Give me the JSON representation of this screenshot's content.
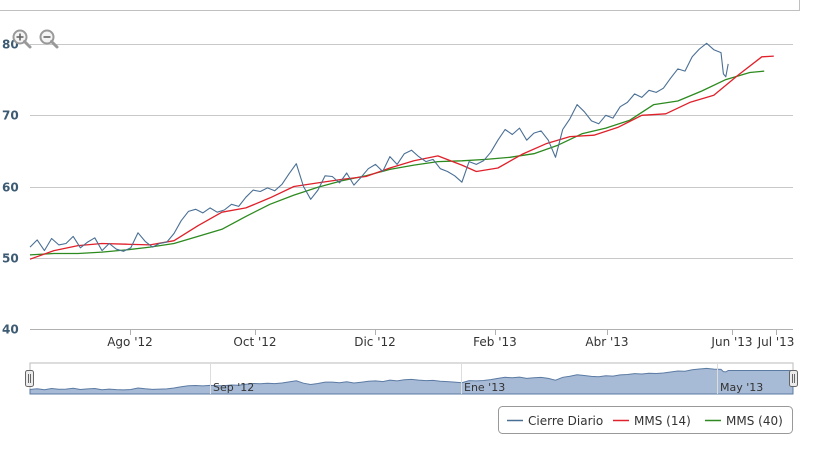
{
  "chart_data": {
    "type": "line",
    "y_ticks": [
      40,
      50,
      60,
      70,
      80
    ],
    "ylim": [
      40,
      80
    ],
    "x_ticks": [
      "Ago '12",
      "Oct '12",
      "Dic '12",
      "Feb '13",
      "Abr '13",
      "Jun '13",
      "Jul '13"
    ],
    "navigator_ticks": [
      "Sep '12",
      "Ene '13",
      "May '13"
    ],
    "grid": true,
    "legend_position": "bottom-right",
    "series": [
      {
        "name": "Cierre Diario",
        "color": "#4a6f95",
        "values": [
          [
            0,
            51.5
          ],
          [
            3,
            52.5
          ],
          [
            6,
            51
          ],
          [
            9,
            52.7
          ],
          [
            12,
            51.8
          ],
          [
            15,
            52
          ],
          [
            18,
            53
          ],
          [
            21,
            51.4
          ],
          [
            24,
            52.2
          ],
          [
            27,
            52.8
          ],
          [
            30,
            51
          ],
          [
            33,
            52
          ],
          [
            36,
            51.2
          ],
          [
            39,
            50.9
          ],
          [
            42,
            51.4
          ],
          [
            45,
            53.5
          ],
          [
            48,
            52.3
          ],
          [
            51,
            51.5
          ],
          [
            54,
            52
          ],
          [
            57,
            52.2
          ],
          [
            60,
            53.4
          ],
          [
            63,
            55.2
          ],
          [
            66,
            56.5
          ],
          [
            69,
            56.8
          ],
          [
            72,
            56.3
          ],
          [
            75,
            57
          ],
          [
            78,
            56.4
          ],
          [
            81,
            56.7
          ],
          [
            84,
            57.5
          ],
          [
            87,
            57.2
          ],
          [
            90,
            58.5
          ],
          [
            93,
            59.5
          ],
          [
            96,
            59.3
          ],
          [
            99,
            59.8
          ],
          [
            102,
            59.4
          ],
          [
            105,
            60.3
          ],
          [
            108,
            61.8
          ],
          [
            111,
            63.2
          ],
          [
            114,
            60
          ],
          [
            117,
            58.2
          ],
          [
            120,
            59.5
          ],
          [
            123,
            61.5
          ],
          [
            126,
            61.4
          ],
          [
            129,
            60.5
          ],
          [
            132,
            61.9
          ],
          [
            135,
            60.2
          ],
          [
            138,
            61.3
          ],
          [
            141,
            62.5
          ],
          [
            144,
            63.1
          ],
          [
            147,
            62.1
          ],
          [
            150,
            64.2
          ],
          [
            153,
            63.1
          ],
          [
            156,
            64.6
          ],
          [
            159,
            65.1
          ],
          [
            162,
            64.2
          ],
          [
            165,
            63.5
          ],
          [
            168,
            63.8
          ],
          [
            171,
            62.5
          ],
          [
            174,
            62.1
          ],
          [
            177,
            61.5
          ],
          [
            180,
            60.6
          ],
          [
            183,
            63.5
          ],
          [
            186,
            63.1
          ],
          [
            189,
            63.6
          ],
          [
            192,
            64.8
          ],
          [
            195,
            66.5
          ],
          [
            198,
            68
          ],
          [
            201,
            67.3
          ],
          [
            204,
            68.2
          ],
          [
            207,
            66.5
          ],
          [
            210,
            67.5
          ],
          [
            213,
            67.8
          ],
          [
            216,
            66.5
          ],
          [
            219,
            64.1
          ],
          [
            222,
            68
          ],
          [
            225,
            69.5
          ],
          [
            228,
            71.5
          ],
          [
            231,
            70.5
          ],
          [
            234,
            69.2
          ],
          [
            237,
            68.8
          ],
          [
            240,
            70
          ],
          [
            243,
            69.6
          ],
          [
            246,
            71.2
          ],
          [
            249,
            71.8
          ],
          [
            252,
            73
          ],
          [
            255,
            72.5
          ],
          [
            258,
            73.5
          ],
          [
            261,
            73.2
          ],
          [
            264,
            73.8
          ],
          [
            267,
            75.2
          ],
          [
            270,
            76.5
          ],
          [
            273,
            76.2
          ],
          [
            276,
            78.2
          ],
          [
            279,
            79.3
          ],
          [
            282,
            80.1
          ],
          [
            285,
            79.2
          ],
          [
            288,
            78.8
          ],
          [
            289,
            75.8
          ],
          [
            290,
            75.4
          ],
          [
            291,
            77.2
          ]
        ]
      },
      {
        "name": "MMS (14)",
        "color": "#e0202a",
        "values": [
          [
            0,
            49.8
          ],
          [
            10,
            51
          ],
          [
            20,
            51.7
          ],
          [
            30,
            52
          ],
          [
            40,
            51.9
          ],
          [
            50,
            51.8
          ],
          [
            60,
            52.4
          ],
          [
            70,
            54.5
          ],
          [
            80,
            56.4
          ],
          [
            90,
            57
          ],
          [
            100,
            58.4
          ],
          [
            110,
            60
          ],
          [
            120,
            60.5
          ],
          [
            130,
            61
          ],
          [
            140,
            61.4
          ],
          [
            150,
            62.6
          ],
          [
            160,
            63.6
          ],
          [
            170,
            64.3
          ],
          [
            180,
            63
          ],
          [
            186,
            62.1
          ],
          [
            195,
            62.6
          ],
          [
            205,
            64.5
          ],
          [
            215,
            66
          ],
          [
            225,
            67
          ],
          [
            235,
            67.2
          ],
          [
            245,
            68.3
          ],
          [
            255,
            70
          ],
          [
            265,
            70.2
          ],
          [
            275,
            71.8
          ],
          [
            285,
            72.8
          ],
          [
            295,
            75.6
          ],
          [
            305,
            78.2
          ],
          [
            310,
            78.3
          ]
        ]
      },
      {
        "name": "MMS (40)",
        "color": "#2c8a1e",
        "values": [
          [
            0,
            50.4
          ],
          [
            10,
            50.6
          ],
          [
            20,
            50.6
          ],
          [
            30,
            50.8
          ],
          [
            40,
            51.1
          ],
          [
            50,
            51.5
          ],
          [
            60,
            52
          ],
          [
            70,
            53
          ],
          [
            80,
            54
          ],
          [
            90,
            55.8
          ],
          [
            100,
            57.5
          ],
          [
            110,
            58.8
          ],
          [
            120,
            59.9
          ],
          [
            130,
            60.8
          ],
          [
            140,
            61.5
          ],
          [
            150,
            62.4
          ],
          [
            160,
            63
          ],
          [
            170,
            63.5
          ],
          [
            180,
            63.6
          ],
          [
            190,
            63.8
          ],
          [
            200,
            64.1
          ],
          [
            210,
            64.6
          ],
          [
            220,
            65.8
          ],
          [
            230,
            67.4
          ],
          [
            240,
            68.2
          ],
          [
            250,
            69.3
          ],
          [
            260,
            71.5
          ],
          [
            270,
            72
          ],
          [
            280,
            73.4
          ],
          [
            290,
            75
          ],
          [
            300,
            76
          ],
          [
            306,
            76.2
          ]
        ]
      }
    ]
  },
  "zoom_controls": {
    "zoom_in_icon": "magnifier-plus-icon",
    "zoom_out_icon": "magnifier-minus-icon"
  }
}
